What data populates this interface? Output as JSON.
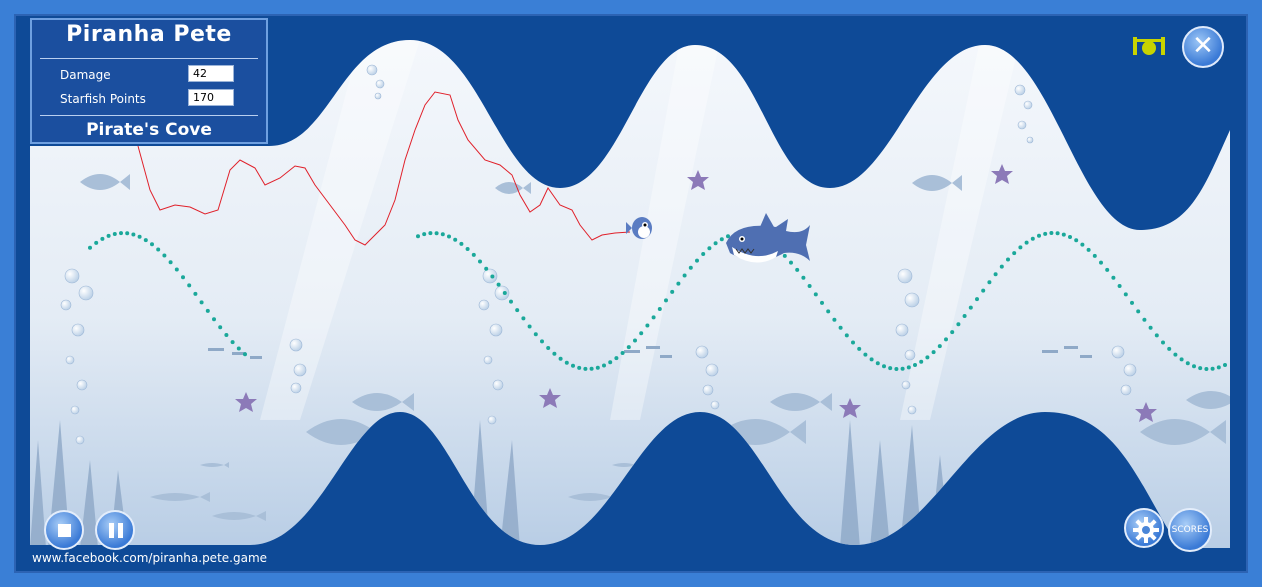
{
  "hud": {
    "title": "Piranha Pete",
    "stats": [
      {
        "label": "Damage",
        "value": "42"
      },
      {
        "label": "Starfish Points",
        "value": "170"
      }
    ],
    "level_name": "Pirate's Cove"
  },
  "controls": {
    "scores_label": "SCORES"
  },
  "footer": {
    "link_text": "www.facebook.com/piranha.pete.game"
  },
  "colors": {
    "frame": "#3a7fd6",
    "wall": "#0e4a97",
    "water_top": "#f4f8fc",
    "water_bottom": "#c9d8ea",
    "trail": "#e0202a",
    "path_dots": "#1aa89a",
    "starfish": "#8c7ab8",
    "camera_icon": "#c8d400"
  },
  "icons": [
    "close-icon",
    "camera-icon",
    "stop-icon",
    "pause-icon",
    "gear-icon"
  ]
}
